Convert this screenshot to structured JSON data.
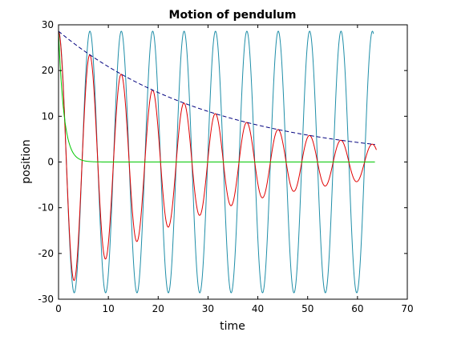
{
  "chart_data": {
    "type": "line",
    "title": "Motion of pendulum",
    "xlabel": "time",
    "ylabel": "position",
    "xlim": [
      0,
      70
    ],
    "ylim": [
      -30,
      30
    ],
    "x_ticks": [
      0,
      10,
      20,
      30,
      40,
      50,
      60,
      70
    ],
    "y_ticks": [
      -30,
      -20,
      -10,
      0,
      10,
      20,
      30
    ],
    "grid": false,
    "legend": "none",
    "series": [
      {
        "style": "solid",
        "color": "#1f8ea8",
        "model": "undamped oscillation",
        "amplitude": 28.6,
        "period": 6.3,
        "decay_time": null,
        "t_start": 0,
        "t_end": 63.2
      },
      {
        "style": "solid",
        "color": "#e00000",
        "model": "damped oscillation",
        "amplitude": 28.6,
        "period": 6.3,
        "decay_time": 31.6,
        "t_start": 0,
        "t_end": 63.8
      },
      {
        "style": "dashed",
        "color": "#00007f",
        "model": "exponential decay envelope",
        "amplitude": 28.6,
        "decay_time": 31.6,
        "t_start": 0,
        "t_end": 63.5
      },
      {
        "style": "solid",
        "color": "#00c800",
        "model": "overdamped decay",
        "amplitude": 28.6,
        "decay_time": 1.1,
        "t_start": 0,
        "t_end": 63.5
      }
    ]
  }
}
